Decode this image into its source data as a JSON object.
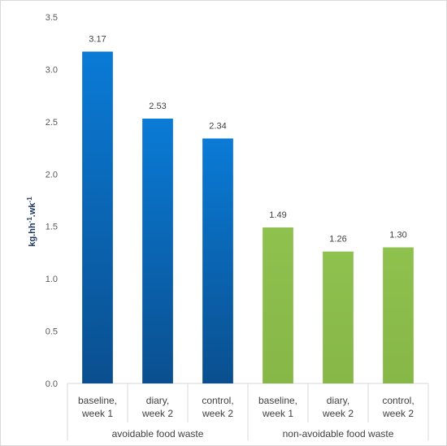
{
  "chart_data": {
    "type": "bar",
    "ylabel": "kg.hh",
    "ylabel_sup1": "-1",
    "ylabel_mid": ".wk",
    "ylabel_sup2": "-1",
    "ylim": [
      0,
      3.5
    ],
    "yticks": [
      "0.0",
      "0.5",
      "1.0",
      "1.5",
      "2.0",
      "2.5",
      "3.0",
      "3.5"
    ],
    "grid": false,
    "groups": [
      {
        "name": "avoidable food waste",
        "color": "#0070c0",
        "bars": [
          {
            "line1": "baseline,",
            "line2": "week 1",
            "value": 3.17,
            "label": "3.17"
          },
          {
            "line1": "diary,",
            "line2": "week 2",
            "value": 2.53,
            "label": "2.53"
          },
          {
            "line1": "control,",
            "line2": "week 2",
            "value": 2.34,
            "label": "2.34"
          }
        ]
      },
      {
        "name": "non-avoidable food waste",
        "color": "#8cba4c",
        "bars": [
          {
            "line1": "baseline,",
            "line2": "week 1",
            "value": 1.49,
            "label": "1.49"
          },
          {
            "line1": "diary,",
            "line2": "week 2",
            "value": 1.26,
            "label": "1.26"
          },
          {
            "line1": "control,",
            "line2": "week 2",
            "value": 1.3,
            "label": "1.30"
          }
        ]
      }
    ]
  }
}
